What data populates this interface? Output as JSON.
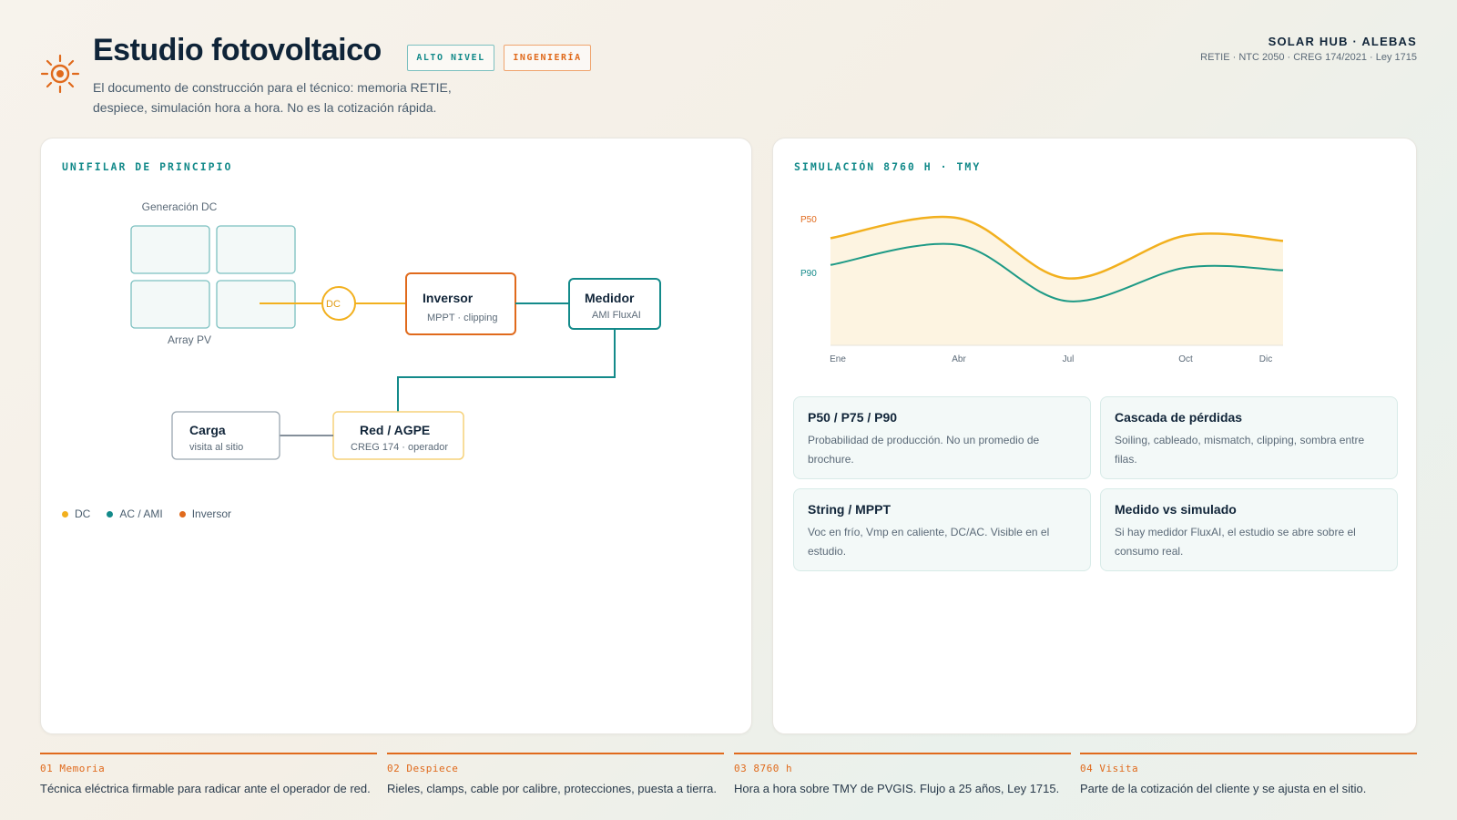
{
  "header": {
    "title": "Estudio fotovoltaico",
    "tags": [
      "ALTO NIVEL",
      "INGENIERÍA"
    ],
    "subtitle": "El documento de construcción para el técnico: memoria RETIE, despiece, simulación hora a hora. No es la cotización rápida.",
    "brand": "SOLAR HUB · ALEBAS",
    "norms": "RETIE · NTC 2050 · CREG 174/2021 · Ley 1715"
  },
  "unifilar": {
    "title": "UNIFILAR DE PRINCIPIO",
    "array_caption_top": "Generación DC",
    "array_caption_bottom": "Array PV",
    "dc_node": "DC",
    "inverter": {
      "title": "Inversor",
      "sub": "MPPT · clipping"
    },
    "meter": {
      "title": "Medidor",
      "sub": "AMI FluxAI"
    },
    "grid": {
      "title": "Red / AGPE",
      "sub": "CREG 174 · operador"
    },
    "load": {
      "title": "Carga",
      "sub": "visita al sitio"
    },
    "legend": [
      {
        "label": "DC",
        "color": "#f2b01e"
      },
      {
        "label": "AC / AMI",
        "color": "#138a8a"
      },
      {
        "label": "Inversor",
        "color": "#e06a1c"
      }
    ]
  },
  "simulation": {
    "title": "SIMULACIÓN 8760 H · TMY",
    "series_labels": {
      "p50": "P50",
      "p90": "P90"
    },
    "months": [
      "Ene",
      "Abr",
      "Jul",
      "Oct",
      "Dic"
    ],
    "cards": [
      {
        "title": "P50 / P75 / P90",
        "text": "Probabilidad de producción. No un promedio de brochure."
      },
      {
        "title": "Cascada de pérdidas",
        "text": "Soiling, cableado, mismatch, clipping, sombra entre filas."
      },
      {
        "title": "String / MPPT",
        "text": "Voc en frío, Vmp en caliente, DC/AC. Visible en el estudio."
      },
      {
        "title": "Medido vs simulado",
        "text": "Si hay medidor FluxAI, el estudio se abre sobre el consumo real."
      }
    ]
  },
  "chart_data": {
    "type": "area",
    "categories": [
      "Ene",
      "Abr",
      "Jul",
      "Oct",
      "Dic"
    ],
    "series": [
      {
        "name": "P50",
        "values": [
          0.8,
          0.95,
          0.5,
          0.82,
          0.78
        ]
      },
      {
        "name": "P90",
        "values": [
          0.6,
          0.75,
          0.33,
          0.58,
          0.56
        ]
      }
    ],
    "ylim": [
      0,
      1
    ],
    "colors": {
      "p50": "#f2b01e",
      "p90": "#1e9a86",
      "fill": "#fdf4e1"
    }
  },
  "steps": [
    {
      "num": "01 Memoria",
      "text": "Técnica eléctrica firmable para radicar ante el operador de red."
    },
    {
      "num": "02 Despiece",
      "text": "Rieles, clamps, cable por calibre, protecciones, puesta a tierra."
    },
    {
      "num": "03 8760 h",
      "text": "Hora a hora sobre TMY de PVGIS. Flujo a 25 años, Ley 1715."
    },
    {
      "num": "04 Visita",
      "text": "Parte de la cotización del cliente y se ajusta en el sitio."
    }
  ]
}
